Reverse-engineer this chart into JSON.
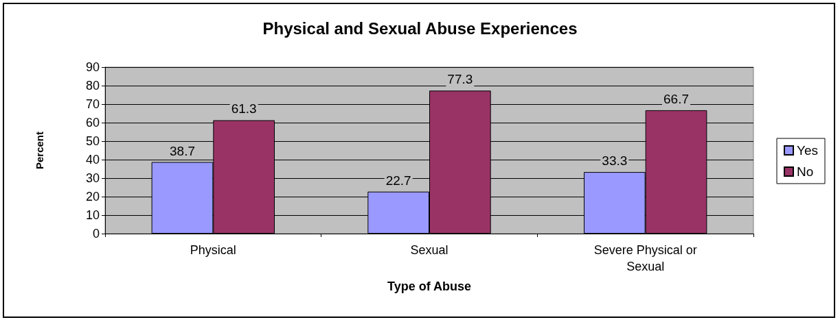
{
  "chart_data": {
    "type": "bar",
    "title": "Physical and Sexual Abuse Experiences",
    "xlabel": "Type of Abuse",
    "ylabel": "Percent",
    "categories": [
      "Physical",
      "Sexual",
      "Severe Physical or\nSexual"
    ],
    "series": [
      {
        "name": "Yes",
        "color": "#9999ff",
        "values": [
          38.7,
          22.7,
          33.3
        ]
      },
      {
        "name": "No",
        "color": "#993366",
        "values": [
          61.3,
          77.3,
          66.7
        ]
      }
    ],
    "ylim": [
      0,
      90
    ],
    "yticks": [
      0,
      10,
      20,
      30,
      40,
      50,
      60,
      70,
      80,
      90
    ],
    "grid": "y",
    "legend": "right",
    "data_labels": true
  }
}
